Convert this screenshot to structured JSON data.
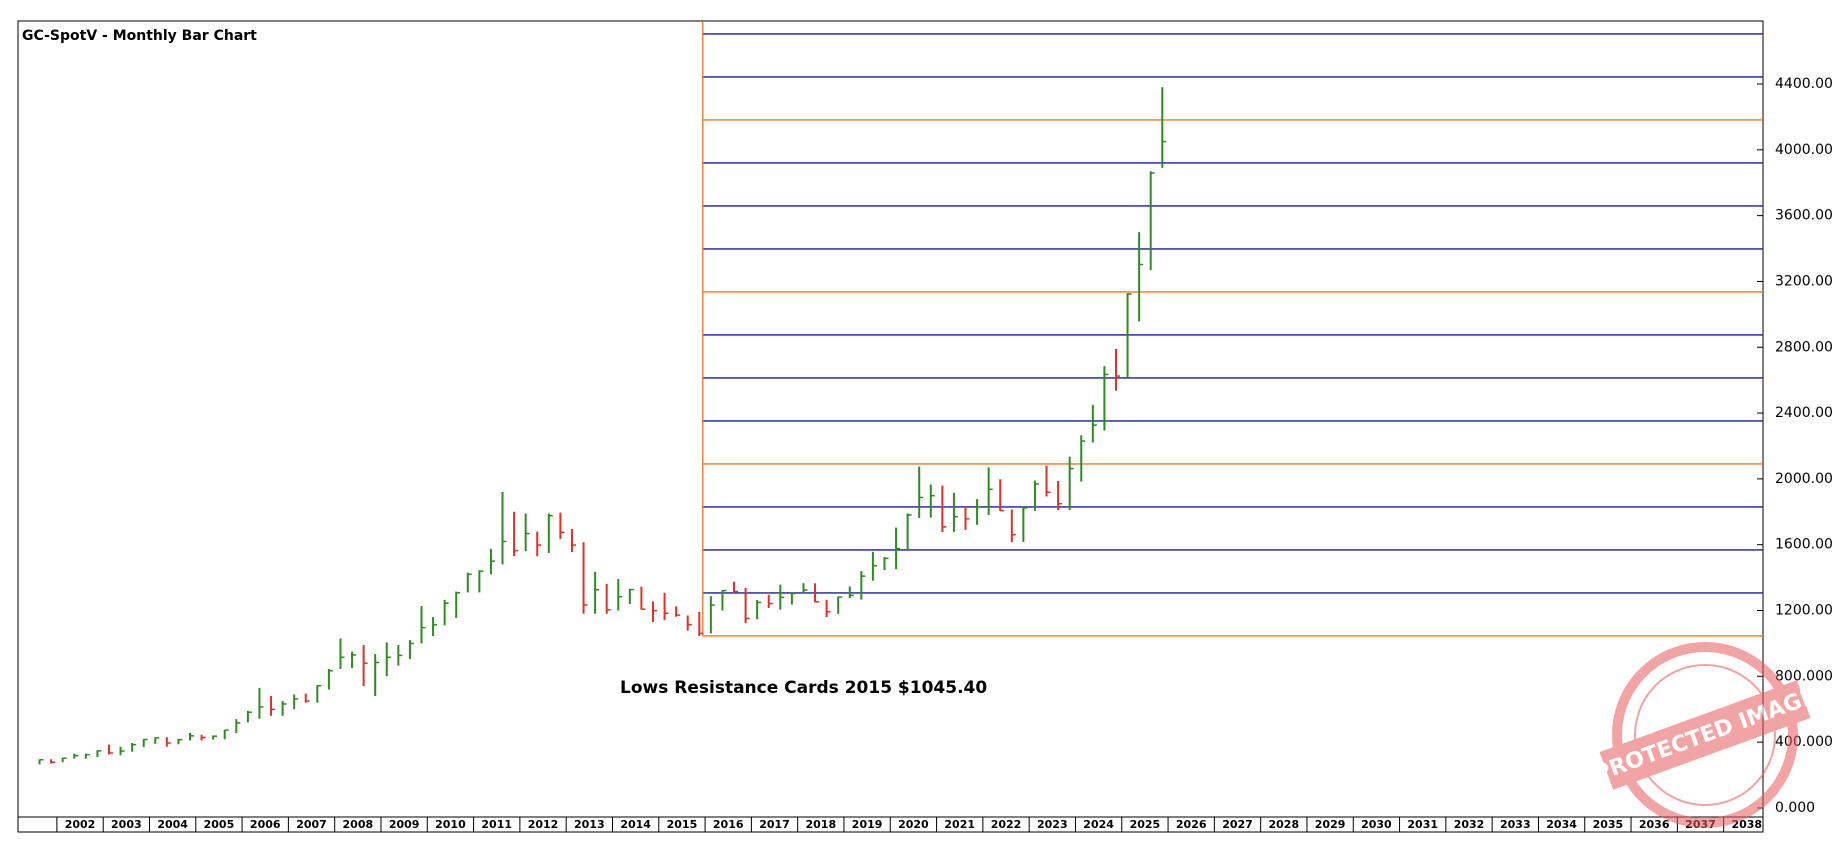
{
  "chart_data": {
    "type": "ohlc",
    "title": "GC-SpotV - Monthly Bar Chart",
    "annotation": "Lows Resistance Cards 2015 $1045.40",
    "watermark": "PROTECTED IMAGE",
    "xlim": [
      2001.16,
      2038.85
    ],
    "xticks": [
      2002,
      2003,
      2004,
      2005,
      2006,
      2007,
      2008,
      2009,
      2010,
      2011,
      2012,
      2013,
      2014,
      2015,
      2016,
      2017,
      2018,
      2019,
      2020,
      2021,
      2022,
      2023,
      2024,
      2025,
      2026,
      2027,
      2028,
      2029,
      2030,
      2031,
      2032,
      2033,
      2034,
      2035,
      2036,
      2037,
      2038
    ],
    "ylim": [
      -55,
      4783
    ],
    "yticks": [
      {
        "value": 0,
        "label": "0.000"
      },
      {
        "value": 400,
        "label": "400.000"
      },
      {
        "value": 800,
        "label": "800.000"
      },
      {
        "value": 1200,
        "label": "1200.00"
      },
      {
        "value": 1600,
        "label": "1600.00"
      },
      {
        "value": 2000,
        "label": "2000.00"
      },
      {
        "value": 2400,
        "label": "2400.00"
      },
      {
        "value": 2800,
        "label": "2800.00"
      },
      {
        "value": 3200,
        "label": "3200.00"
      },
      {
        "value": 3600,
        "label": "3600.00"
      },
      {
        "value": 4000,
        "label": "4000.00"
      },
      {
        "value": 4400,
        "label": "4400.00"
      }
    ],
    "up_color": "#2e8b22",
    "down_color": "#e0302a",
    "levels_start": 2015.95,
    "levels": [
      1045.4,
      1306.75,
      1568.1,
      1829.45,
      2090.8,
      2352.15,
      2613.5,
      2874.85,
      3136.2,
      3397.55,
      3658.9,
      3920.25,
      4181.6,
      4442.95,
      4704.3
    ],
    "level_colors": [
      "#f07a1a",
      "#1a1a9a",
      "#1a1a9a",
      "#1a1a9a",
      "#f07a1a",
      "#1a1a9a",
      "#1a1a9a",
      "#1a1a9a",
      "#f07a1a",
      "#1a1a9a",
      "#1a1a9a",
      "#1a1a9a",
      "#f07a1a",
      "#1a1a9a",
      "#1a1a9a"
    ],
    "x": [
      2001.625,
      2001.875,
      2002.125,
      2002.375,
      2002.625,
      2002.875,
      2003.125,
      2003.375,
      2003.625,
      2003.875,
      2004.125,
      2004.375,
      2004.625,
      2004.875,
      2005.125,
      2005.375,
      2005.625,
      2005.875,
      2006.125,
      2006.375,
      2006.625,
      2006.875,
      2007.125,
      2007.375,
      2007.625,
      2007.875,
      2008.125,
      2008.375,
      2008.625,
      2008.875,
      2009.125,
      2009.375,
      2009.625,
      2009.875,
      2010.125,
      2010.375,
      2010.625,
      2010.875,
      2011.125,
      2011.375,
      2011.625,
      2011.875,
      2012.125,
      2012.375,
      2012.625,
      2012.875,
      2013.125,
      2013.375,
      2013.625,
      2013.875,
      2014.125,
      2014.375,
      2014.625,
      2014.875,
      2015.125,
      2015.375,
      2015.625,
      2015.875,
      2016.125,
      2016.375,
      2016.625,
      2016.875,
      2017.125,
      2017.375,
      2017.625,
      2017.875,
      2018.125,
      2018.375,
      2018.625,
      2018.875,
      2019.125,
      2019.375,
      2019.625,
      2019.875,
      2020.125,
      2020.375,
      2020.625,
      2020.875,
      2021.125,
      2021.375,
      2021.625,
      2021.875,
      2022.125,
      2022.375,
      2022.625,
      2022.875,
      2023.125,
      2023.375,
      2023.625,
      2023.875,
      2024.125,
      2024.375,
      2024.625,
      2024.875,
      2025.125,
      2025.375,
      2025.625,
      2025.875
    ],
    "high": [
      295,
      296,
      305,
      330,
      330,
      350,
      385,
      372,
      395,
      418,
      430,
      430,
      420,
      456,
      445,
      441,
      475,
      540,
      590,
      730,
      680,
      650,
      690,
      695,
      745,
      845,
      1030,
      950,
      990,
      935,
      1006,
      990,
      1020,
      1227,
      1160,
      1265,
      1315,
      1430,
      1445,
      1575,
      1920,
      1800,
      1790,
      1680,
      1790,
      1795,
      1695,
      1615,
      1435,
      1362,
      1392,
      1332,
      1345,
      1255,
      1307,
      1225,
      1170,
      1191,
      1287,
      1325,
      1375,
      1337,
      1264,
      1296,
      1357,
      1307,
      1366,
      1365,
      1265,
      1285,
      1346,
      1439,
      1557,
      1525,
      1704,
      1790,
      2075,
      1966,
      1959,
      1916,
      1834,
      1877,
      2070,
      1998,
      1814,
      1833,
      1990,
      2080,
      1987,
      2135,
      2265,
      2450,
      2685,
      2790,
      3128,
      3500,
      3870,
      4381
    ],
    "low": [
      265,
      270,
      278,
      300,
      300,
      310,
      325,
      320,
      342,
      370,
      390,
      372,
      387,
      410,
      410,
      415,
      418,
      455,
      520,
      542,
      560,
      560,
      600,
      640,
      640,
      720,
      845,
      850,
      740,
      680,
      800,
      865,
      905,
      1000,
      1045,
      1110,
      1155,
      1310,
      1310,
      1420,
      1480,
      1530,
      1560,
      1530,
      1550,
      1635,
      1555,
      1180,
      1180,
      1180,
      1200,
      1240,
      1205,
      1130,
      1142,
      1162,
      1077,
      1045.4,
      1061,
      1200,
      1305,
      1123,
      1146,
      1215,
      1205,
      1236,
      1303,
      1250,
      1160,
      1180,
      1276,
      1266,
      1381,
      1445,
      1451,
      1568,
      1763,
      1765,
      1677,
      1678,
      1690,
      1721,
      1780,
      1805,
      1615,
      1617,
      1805,
      1893,
      1810,
      1810,
      1984,
      2222,
      2293,
      2536,
      2615,
      2957,
      3268,
      3890
    ],
    "close": [
      293,
      278,
      302,
      318,
      324,
      347,
      334,
      346,
      385,
      416,
      426,
      395,
      415,
      438,
      428,
      436,
      473,
      517,
      582,
      614,
      599,
      632,
      663,
      650,
      743,
      834,
      916,
      930,
      880,
      884,
      916,
      927,
      1000,
      1096,
      1113,
      1245,
      1308,
      1420,
      1439,
      1500,
      1620,
      1564,
      1668,
      1598,
      1776,
      1675,
      1598,
      1234,
      1326,
      1204,
      1284,
      1327,
      1208,
      1199,
      1183,
      1172,
      1114,
      1061,
      1233,
      1321,
      1315,
      1152,
      1249,
      1242,
      1280,
      1303,
      1325,
      1253,
      1192,
      1282,
      1292,
      1409,
      1472,
      1517,
      1577,
      1781,
      1887,
      1898,
      1708,
      1770,
      1757,
      1829,
      1937,
      1807,
      1661,
      1824,
      1969,
      1919,
      1849,
      2063,
      2230,
      2327,
      2635,
      2625,
      3124,
      3303,
      3859,
      4050
    ]
  }
}
